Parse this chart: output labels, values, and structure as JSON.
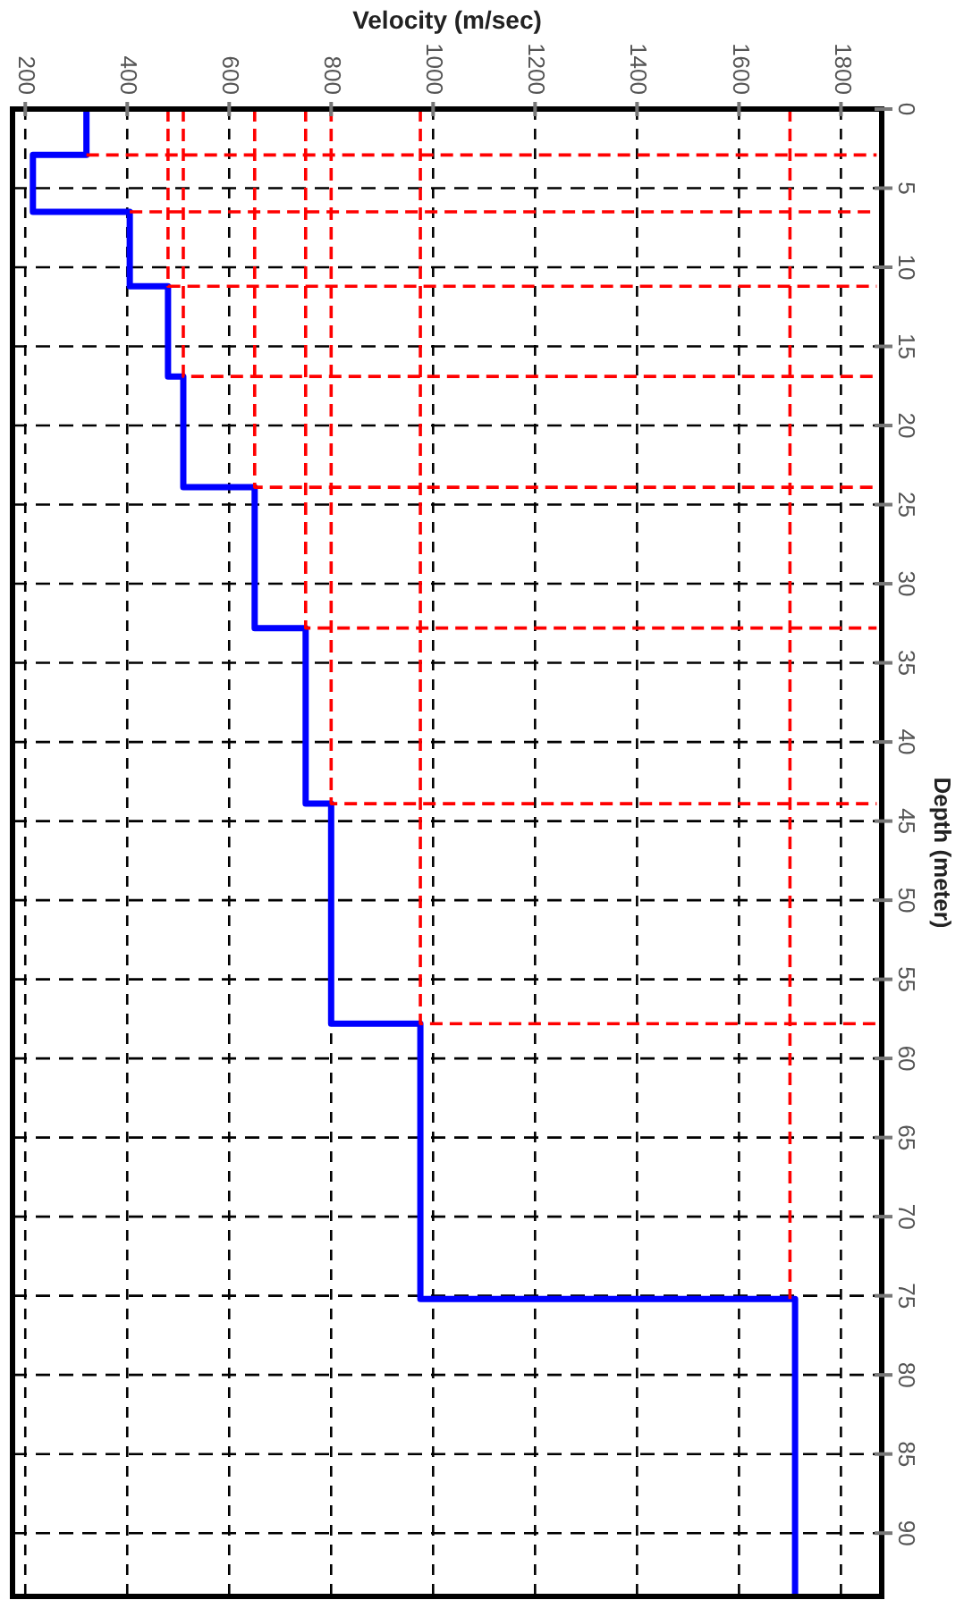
{
  "chart_data": {
    "type": "line",
    "xlabel": "Velocity (m/sec)",
    "ylabel": "Depth (meter)",
    "xlim": [
      175,
      1880
    ],
    "xticks": [
      200,
      400,
      600,
      800,
      1000,
      1200,
      1400,
      1600,
      1800
    ],
    "ylim": [
      94,
      0
    ],
    "yticks": [
      0,
      5,
      10,
      15,
      20,
      25,
      30,
      35,
      40,
      45,
      50,
      55,
      60,
      65,
      70,
      75,
      80,
      85,
      90
    ],
    "grid": true,
    "marker": "none",
    "series": [
      {
        "color": "#0000ff",
        "line_style": "solid",
        "x": [
          320,
          320,
          215,
          215,
          405,
          405,
          480,
          480,
          510,
          510,
          650,
          650,
          750,
          750,
          800,
          800,
          975,
          975,
          1710,
          1710
        ],
        "values": [
          0,
          2.9,
          2.9,
          6.5,
          6.5,
          11.2,
          11.2,
          16.9,
          16.9,
          23.9,
          23.9,
          32.8,
          32.8,
          43.9,
          43.9,
          57.8,
          57.8,
          75.2,
          75.2,
          94
        ]
      },
      {
        "color": "#ff0000",
        "line_style": "dashed",
        "x": [
          320,
          1870,
          null,
          405,
          1870,
          null,
          480,
          480,
          1870,
          null,
          510,
          510,
          1870,
          null,
          650,
          650,
          1870,
          null,
          750,
          750,
          1870,
          null,
          800,
          800,
          1870,
          null,
          975,
          975,
          1870,
          null,
          1700,
          1700
        ],
        "values": [
          2.9,
          2.9,
          null,
          6.5,
          6.5,
          null,
          0,
          11.2,
          11.2,
          null,
          0,
          16.9,
          16.9,
          null,
          0,
          23.9,
          23.9,
          null,
          0,
          32.8,
          32.8,
          null,
          0,
          43.9,
          43.9,
          null,
          0,
          57.8,
          57.8,
          null,
          0,
          75.2
        ]
      }
    ]
  }
}
